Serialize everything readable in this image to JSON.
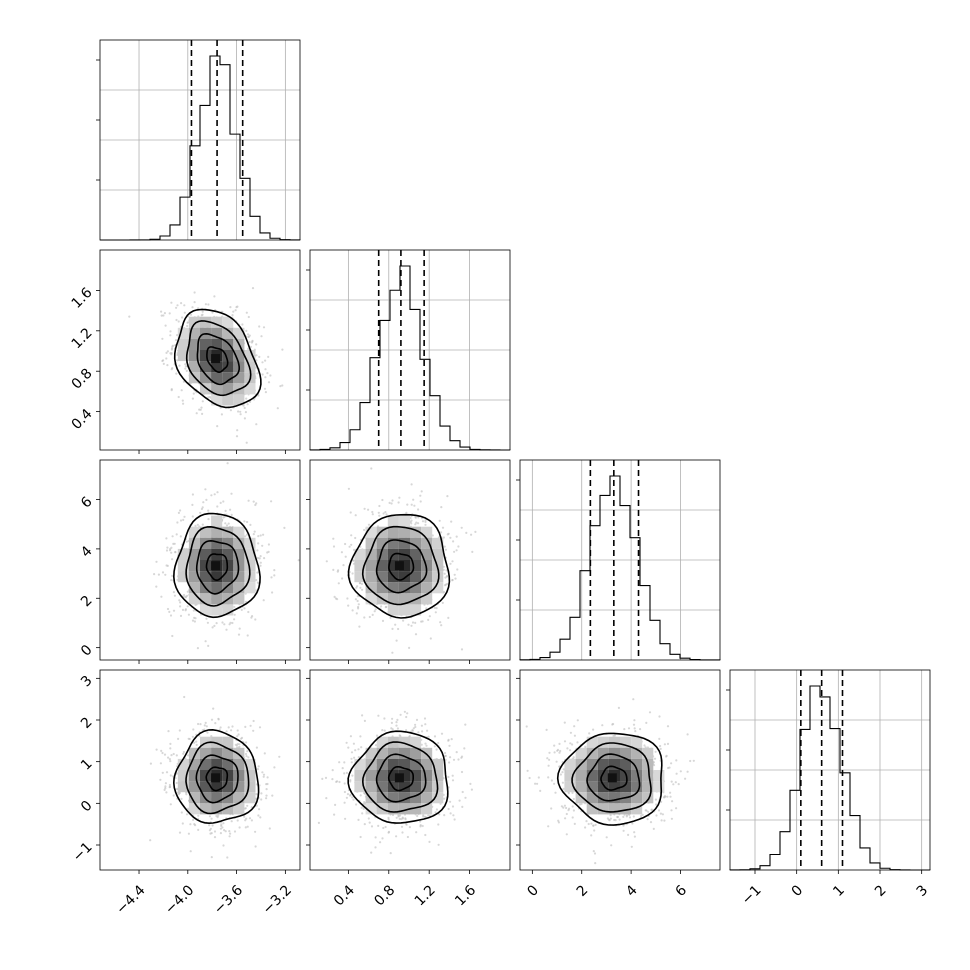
{
  "chart_data": {
    "type": "corner",
    "parameters": [
      {
        "range": [
          -4.72,
          -3.08
        ],
        "ticks": [
          -4.4,
          -4.0,
          -3.6,
          -3.2
        ],
        "tick_labels": [
          "−4.4",
          "−4.0",
          "−3.6",
          "−3.2"
        ],
        "mean": -3.76,
        "std": 0.155,
        "quantiles": [
          -3.97,
          -3.76,
          -3.55
        ]
      },
      {
        "range": [
          0.02,
          2.0
        ],
        "ticks": [
          0.4,
          0.8,
          1.2,
          1.6
        ],
        "tick_labels": [
          "0.4",
          "0.8",
          "1.2",
          "1.6"
        ],
        "mean": 0.92,
        "std": 0.22,
        "quantiles": [
          0.7,
          0.92,
          1.15
        ]
      },
      {
        "range": [
          -0.5,
          7.6
        ],
        "ticks": [
          0,
          2,
          4,
          6
        ],
        "tick_labels": [
          "0",
          "2",
          "4",
          "6"
        ],
        "mean": 3.3,
        "std": 0.95,
        "quantiles": [
          2.35,
          3.3,
          4.3
        ]
      },
      {
        "range": [
          -1.6,
          3.2
        ],
        "ticks": [
          -1,
          0,
          1,
          2,
          3
        ],
        "tick_labels": [
          "−1",
          "0",
          "1",
          "2",
          "3"
        ],
        "mean": 0.6,
        "std": 0.5,
        "quantiles": [
          0.1,
          0.6,
          1.1
        ]
      }
    ],
    "correlations": {
      "1-0": -0.3,
      "2-0": 0.0,
      "2-1": 0.0,
      "3-0": 0.0,
      "3-1": 0.0,
      "3-2": 0.0
    },
    "contour_levels_sigma": [
      0.5,
      1.0,
      1.5,
      2.0
    ],
    "density_gray_max": "#3a3a3a",
    "line_color": "#000000",
    "grid": true
  }
}
